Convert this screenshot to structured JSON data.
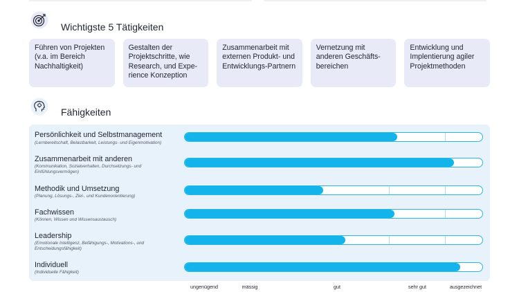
{
  "tasks": {
    "title": "Wichtigste 5 Tätigkeiten",
    "icon": "target-icon",
    "items": [
      "Führen von Projekten (v.a. im Bereich Nachhaltigkeit)",
      "Gestalten der Projektschritte, wie Research, und Expe-rience Konzeption",
      "Zusammenarbeit mit externen Produkt- und Entwicklungs-Partnern",
      "Vernetzung mit anderen Geschäfts-bereichen",
      "Entwicklung und Implentierung agiler Projektmethoden"
    ]
  },
  "skills": {
    "title": "Fähigkeiten",
    "icon": "head-lightbulb-icon",
    "accent_color": "#12b4ea",
    "panel_color": "#e7f2fb",
    "scale": [
      "ungenügend",
      "mässig",
      "gut",
      "sehr gut",
      "ausgezeichnet"
    ],
    "items": [
      {
        "name": "Persönlichkeit und Selbstmanagement",
        "desc": "(Lernbereitschaft, Belastbarkeit, Leistungs- und Eigenmotivation)",
        "level": 0.715
      },
      {
        "name": "Zusammenarbeit mit anderen",
        "desc": "(Kommunikation, Sozialverhalten, Durchsetzungs- und Einfühlungsvermögen)",
        "level": 0.905
      },
      {
        "name": "Methodik und Umsetzung",
        "desc": "(Planung, Lösungs-, Ziel-, und Kundenorientierung)",
        "level": 0.465
      },
      {
        "name": "Fachwissen",
        "desc": "(Können, Wissen und Wissensaustausch)",
        "level": 0.705
      },
      {
        "name": "Leadership",
        "desc": "(Emotionale Intelligenz, Befähigungs-, Motivations-, und Entscheidungsfähigkeit)",
        "level": 0.54
      },
      {
        "name": "Individuell",
        "desc": "(Individuelle Fähigkeit)",
        "level": 0.925
      }
    ]
  }
}
